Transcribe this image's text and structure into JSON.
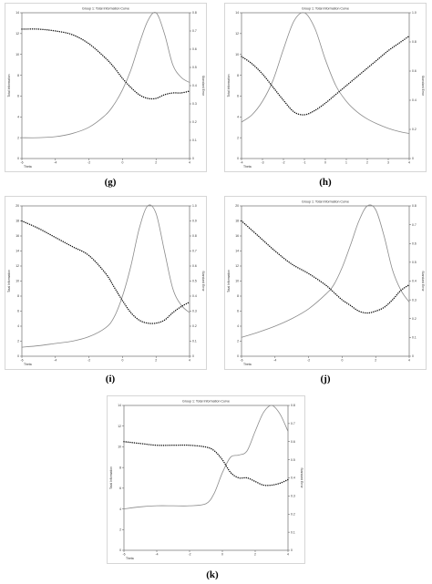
{
  "chart_data": [
    {
      "id": "g",
      "caption": "(g)",
      "type": "line",
      "title": "Group 1: Total Information Curve",
      "xlabel": "Theta",
      "ylabel": "Total Information",
      "y2label": "Standard Error",
      "xlim": [
        -6,
        4
      ],
      "ylim": [
        0,
        14
      ],
      "y2lim": [
        0,
        0.8
      ],
      "xticks": [
        "-6",
        "-4",
        "-2",
        "0",
        "2",
        "4"
      ],
      "yticks": [
        "0",
        "2",
        "4",
        "6",
        "8",
        "10",
        "12",
        "14"
      ],
      "y2ticks": [
        "0",
        "0.1",
        "0.2",
        "0.3",
        "0.4",
        "0.5",
        "0.6",
        "0.7",
        "0.8"
      ],
      "series": [
        {
          "axis": "left",
          "style": "solid",
          "x": [
            -6,
            -5,
            -4,
            -3,
            -2,
            -1,
            -0.5,
            0,
            0.5,
            1,
            1.5,
            2,
            2.5,
            3,
            3.5,
            4
          ],
          "y": [
            2.0,
            2.0,
            2.1,
            2.4,
            3.0,
            4.2,
            5.2,
            6.6,
            8.5,
            11.0,
            13.2,
            14.0,
            12.0,
            9.0,
            7.8,
            7.3
          ]
        },
        {
          "axis": "right",
          "style": "dotted",
          "x": [
            -6,
            -5,
            -4,
            -3,
            -2,
            -1,
            -0.5,
            0,
            0.5,
            1,
            1.5,
            2,
            2.5,
            3,
            3.5,
            4
          ],
          "y": [
            0.71,
            0.71,
            0.7,
            0.68,
            0.63,
            0.55,
            0.5,
            0.44,
            0.39,
            0.35,
            0.33,
            0.33,
            0.35,
            0.36,
            0.36,
            0.37
          ]
        }
      ]
    },
    {
      "id": "h",
      "caption": "(h)",
      "type": "line",
      "title": "Group 1: Total Information Curve",
      "xlabel": "Theta",
      "ylabel": "Total Information",
      "y2label": "Standard Error",
      "xlim": [
        -4,
        4
      ],
      "ylim": [
        0,
        14
      ],
      "y2lim": [
        0,
        1.0
      ],
      "xticks": [
        "-4",
        "-3",
        "-2",
        "-1",
        "0",
        "1",
        "2",
        "3",
        "4"
      ],
      "yticks": [
        "0",
        "2",
        "4",
        "6",
        "8",
        "10",
        "12",
        "14"
      ],
      "y2ticks": [
        "0",
        "0.2",
        "0.4",
        "0.6",
        "0.8",
        "1.0"
      ],
      "series": [
        {
          "axis": "left",
          "style": "solid",
          "x": [
            -4,
            -3.5,
            -3,
            -2.5,
            -2,
            -1.5,
            -1,
            -0.5,
            0,
            0.5,
            1,
            1.5,
            2,
            2.5,
            3,
            3.5,
            4
          ],
          "y": [
            3.5,
            4.2,
            5.5,
            7.5,
            10.5,
            13.2,
            14.0,
            12.5,
            9.5,
            7.0,
            5.5,
            4.5,
            3.8,
            3.3,
            2.9,
            2.6,
            2.4
          ]
        },
        {
          "axis": "right",
          "style": "dotted",
          "x": [
            -4,
            -3.5,
            -3,
            -2.5,
            -2,
            -1.5,
            -1,
            -0.5,
            0,
            0.5,
            1,
            1.5,
            2,
            2.5,
            3,
            3.5,
            4
          ],
          "y": [
            0.7,
            0.65,
            0.58,
            0.49,
            0.4,
            0.32,
            0.3,
            0.33,
            0.38,
            0.44,
            0.5,
            0.56,
            0.62,
            0.68,
            0.74,
            0.79,
            0.84
          ]
        }
      ]
    },
    {
      "id": "i",
      "caption": "(i)",
      "type": "line",
      "title": "",
      "xlabel": "Theta",
      "ylabel": "Total Information",
      "y2label": "Standard Error",
      "xlim": [
        -6,
        4
      ],
      "ylim": [
        0,
        20
      ],
      "y2lim": [
        0,
        1.0
      ],
      "xticks": [
        "-6",
        "-4",
        "-2",
        "0",
        "2",
        "4"
      ],
      "yticks": [
        "0",
        "2",
        "4",
        "6",
        "8",
        "10",
        "12",
        "14",
        "16",
        "18",
        "20"
      ],
      "y2ticks": [
        "0",
        "0.1",
        "0.2",
        "0.3",
        "0.4",
        "0.5",
        "0.6",
        "0.7",
        "0.8",
        "0.9",
        "1.0"
      ],
      "series": [
        {
          "axis": "left",
          "style": "solid",
          "x": [
            -6,
            -5,
            -4,
            -3,
            -2,
            -1,
            -0.5,
            0,
            0.5,
            1,
            1.5,
            2,
            2.5,
            3,
            3.5,
            4
          ],
          "y": [
            1.2,
            1.4,
            1.7,
            2.0,
            2.6,
            3.8,
            5.2,
            8.0,
            12.0,
            17.0,
            20.0,
            19.0,
            14.0,
            9.0,
            6.8,
            5.8
          ]
        },
        {
          "axis": "right",
          "style": "dotted",
          "x": [
            -6,
            -5,
            -4,
            -3,
            -2,
            -1,
            -0.5,
            0,
            0.5,
            1,
            1.5,
            2,
            2.5,
            3,
            3.5,
            4
          ],
          "y": [
            0.9,
            0.85,
            0.79,
            0.73,
            0.67,
            0.55,
            0.46,
            0.37,
            0.29,
            0.24,
            0.22,
            0.22,
            0.24,
            0.29,
            0.33,
            0.36
          ]
        }
      ]
    },
    {
      "id": "j",
      "caption": "(j)",
      "type": "line",
      "title": "Group 1: Total Information Curve",
      "xlabel": "Theta",
      "ylabel": "Total Information",
      "y2label": "Standard Error",
      "xlim": [
        -6,
        4
      ],
      "ylim": [
        0,
        20
      ],
      "y2lim": [
        0,
        0.8
      ],
      "xticks": [
        "-6",
        "-4",
        "-2",
        "0",
        "2",
        "4"
      ],
      "yticks": [
        "0",
        "2",
        "4",
        "6",
        "8",
        "10",
        "12",
        "14",
        "16",
        "18",
        "20"
      ],
      "y2ticks": [
        "0",
        "0.1",
        "0.2",
        "0.3",
        "0.4",
        "0.5",
        "0.6",
        "0.7",
        "0.8"
      ],
      "series": [
        {
          "axis": "left",
          "style": "solid",
          "x": [
            -6,
            -5,
            -4,
            -3,
            -2,
            -1,
            -0.5,
            0,
            0.5,
            1,
            1.5,
            2,
            2.5,
            3,
            3.5,
            4
          ],
          "y": [
            2.5,
            3.2,
            4.0,
            5.0,
            6.3,
            8.2,
            9.5,
            11.8,
            14.8,
            18.0,
            20.0,
            19.5,
            16.0,
            11.5,
            8.8,
            7.2
          ]
        },
        {
          "axis": "right",
          "style": "dotted",
          "x": [
            -6,
            -5,
            -4,
            -3,
            -2,
            -1,
            -0.5,
            0,
            0.5,
            1,
            1.5,
            2,
            2.5,
            3,
            3.5,
            4
          ],
          "y": [
            0.72,
            0.64,
            0.56,
            0.49,
            0.44,
            0.38,
            0.34,
            0.3,
            0.27,
            0.24,
            0.23,
            0.24,
            0.26,
            0.3,
            0.35,
            0.38
          ]
        }
      ]
    },
    {
      "id": "k",
      "caption": "(k)",
      "type": "line",
      "title": "Group 1: Total Information Curve",
      "xlabel": "Theta",
      "ylabel": "Total Information",
      "y2label": "Standard Error",
      "xlim": [
        -6,
        4
      ],
      "ylim": [
        0,
        14
      ],
      "y2lim": [
        0,
        0.8
      ],
      "xticks": [
        "-6",
        "-4",
        "-2",
        "0",
        "2",
        "4"
      ],
      "yticks": [
        "0",
        "2",
        "4",
        "6",
        "8",
        "10",
        "12",
        "14"
      ],
      "y2ticks": [
        "0",
        "0.1",
        "0.2",
        "0.3",
        "0.4",
        "0.5",
        "0.6",
        "0.7",
        "0.8"
      ],
      "series": [
        {
          "axis": "left",
          "style": "solid",
          "x": [
            -6,
            -5,
            -4,
            -3,
            -2,
            -1,
            -0.5,
            0,
            0.5,
            1,
            1.5,
            2,
            2.5,
            3,
            3.5,
            4
          ],
          "y": [
            4.0,
            4.2,
            4.3,
            4.3,
            4.3,
            4.5,
            5.5,
            7.5,
            9.0,
            9.2,
            9.6,
            11.5,
            13.3,
            14.0,
            13.2,
            11.5
          ]
        },
        {
          "axis": "right",
          "style": "dotted",
          "x": [
            -6,
            -5,
            -4,
            -3,
            -2,
            -1,
            -0.5,
            0,
            0.5,
            1,
            1.5,
            2,
            2.5,
            3,
            3.5,
            4
          ],
          "y": [
            0.6,
            0.59,
            0.58,
            0.58,
            0.58,
            0.57,
            0.55,
            0.5,
            0.43,
            0.4,
            0.4,
            0.38,
            0.36,
            0.36,
            0.37,
            0.39
          ]
        }
      ]
    }
  ]
}
